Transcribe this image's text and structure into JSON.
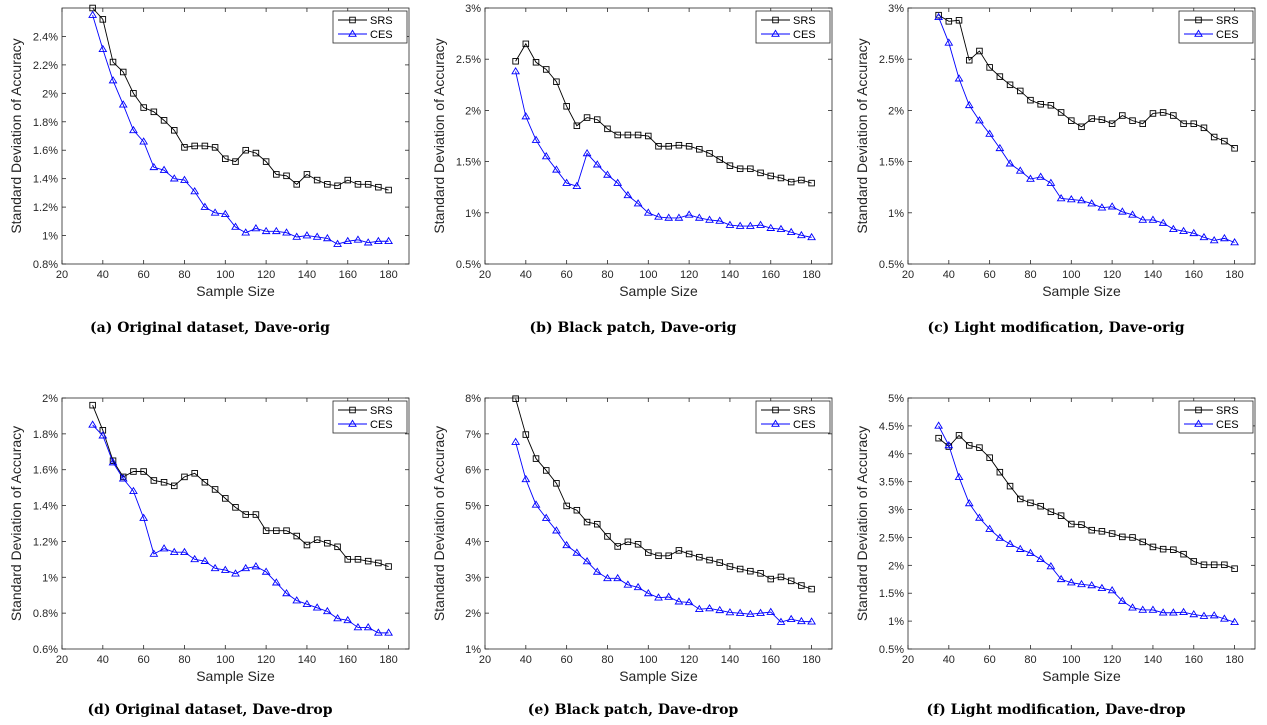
{
  "legend": {
    "srs": "SRS",
    "ces": "CES"
  },
  "colors": {
    "srs": "#000000",
    "ces": "#0000ff"
  },
  "chart_data": [
    {
      "type": "line",
      "caption": "(a) Original dataset, Dave-orig",
      "xlabel": "Sample Size",
      "ylabel": "Standard Deviation of Accuracy",
      "xlim": [
        20,
        190
      ],
      "ylim": [
        0.8,
        2.6
      ],
      "xticks": [
        20,
        40,
        60,
        80,
        100,
        120,
        140,
        160,
        180
      ],
      "yticks": [
        0.8,
        1.0,
        1.2,
        1.4,
        1.6,
        1.8,
        2.0,
        2.2,
        2.4
      ],
      "ytick_labels": [
        "0.8%",
        "1%",
        "1.2%",
        "1.4%",
        "1.6%",
        "1.8%",
        "2%",
        "2.2%",
        "2.4%"
      ],
      "legend_position": "top-right",
      "x": [
        35,
        40,
        45,
        50,
        55,
        60,
        65,
        70,
        75,
        80,
        85,
        90,
        95,
        100,
        105,
        110,
        115,
        120,
        125,
        130,
        135,
        140,
        145,
        150,
        155,
        160,
        165,
        170,
        175,
        180
      ],
      "series": [
        {
          "name": "SRS",
          "values": [
            2.6,
            2.52,
            2.22,
            2.15,
            2.0,
            1.9,
            1.87,
            1.81,
            1.74,
            1.62,
            1.63,
            1.63,
            1.62,
            1.54,
            1.52,
            1.6,
            1.58,
            1.52,
            1.43,
            1.42,
            1.36,
            1.43,
            1.39,
            1.36,
            1.35,
            1.39,
            1.36,
            1.36,
            1.34,
            1.32
          ]
        },
        {
          "name": "CES",
          "values": [
            2.55,
            2.31,
            2.09,
            1.92,
            1.74,
            1.66,
            1.48,
            1.46,
            1.4,
            1.39,
            1.31,
            1.2,
            1.16,
            1.15,
            1.06,
            1.02,
            1.05,
            1.03,
            1.03,
            1.02,
            0.99,
            1.0,
            0.99,
            0.98,
            0.94,
            0.96,
            0.97,
            0.95,
            0.96,
            0.96
          ]
        }
      ]
    },
    {
      "type": "line",
      "caption": "(b) Black patch, Dave-orig",
      "xlabel": "Sample Size",
      "ylabel": "Standard Deviation of Accuracy",
      "xlim": [
        20,
        190
      ],
      "ylim": [
        0.5,
        3.0
      ],
      "xticks": [
        20,
        40,
        60,
        80,
        100,
        120,
        140,
        160,
        180
      ],
      "yticks": [
        0.5,
        1.0,
        1.5,
        2.0,
        2.5,
        3.0
      ],
      "ytick_labels": [
        "0.5%",
        "1%",
        "1.5%",
        "2%",
        "2.5%",
        "3%"
      ],
      "legend_position": "top-right",
      "x": [
        35,
        40,
        45,
        50,
        55,
        60,
        65,
        70,
        75,
        80,
        85,
        90,
        95,
        100,
        105,
        110,
        115,
        120,
        125,
        130,
        135,
        140,
        145,
        150,
        155,
        160,
        165,
        170,
        175,
        180
      ],
      "series": [
        {
          "name": "SRS",
          "values": [
            2.48,
            2.65,
            2.47,
            2.4,
            2.28,
            2.04,
            1.85,
            1.93,
            1.91,
            1.82,
            1.76,
            1.76,
            1.76,
            1.75,
            1.65,
            1.65,
            1.66,
            1.65,
            1.62,
            1.58,
            1.52,
            1.46,
            1.43,
            1.43,
            1.39,
            1.36,
            1.34,
            1.3,
            1.32,
            1.29
          ]
        },
        {
          "name": "CES",
          "values": [
            2.38,
            1.94,
            1.71,
            1.55,
            1.42,
            1.29,
            1.26,
            1.58,
            1.47,
            1.37,
            1.29,
            1.17,
            1.09,
            1.0,
            0.96,
            0.95,
            0.95,
            0.98,
            0.95,
            0.93,
            0.92,
            0.88,
            0.87,
            0.87,
            0.88,
            0.85,
            0.84,
            0.81,
            0.78,
            0.76
          ]
        }
      ]
    },
    {
      "type": "line",
      "caption": "(c) Light modification, Dave-orig",
      "xlabel": "Sample Size",
      "ylabel": "Standard Deviation of Accuracy",
      "xlim": [
        20,
        190
      ],
      "ylim": [
        0.5,
        3.0
      ],
      "xticks": [
        20,
        40,
        60,
        80,
        100,
        120,
        140,
        160,
        180
      ],
      "yticks": [
        0.5,
        1.0,
        1.5,
        2.0,
        2.5,
        3.0
      ],
      "ytick_labels": [
        "0.5%",
        "1%",
        "1.5%",
        "2%",
        "2.5%",
        "3%"
      ],
      "legend_position": "top-right",
      "x": [
        35,
        40,
        45,
        50,
        55,
        60,
        65,
        70,
        75,
        80,
        85,
        90,
        95,
        100,
        105,
        110,
        115,
        120,
        125,
        130,
        135,
        140,
        145,
        150,
        155,
        160,
        165,
        170,
        175,
        180
      ],
      "series": [
        {
          "name": "SRS",
          "values": [
            2.93,
            2.87,
            2.88,
            2.49,
            2.58,
            2.42,
            2.33,
            2.25,
            2.19,
            2.1,
            2.06,
            2.05,
            1.98,
            1.9,
            1.84,
            1.92,
            1.91,
            1.87,
            1.95,
            1.9,
            1.87,
            1.97,
            1.98,
            1.95,
            1.87,
            1.87,
            1.83,
            1.74,
            1.7,
            1.63
          ]
        },
        {
          "name": "CES",
          "values": [
            2.91,
            2.66,
            2.31,
            2.05,
            1.9,
            1.77,
            1.63,
            1.48,
            1.41,
            1.33,
            1.35,
            1.29,
            1.14,
            1.13,
            1.12,
            1.09,
            1.05,
            1.06,
            1.01,
            0.98,
            0.93,
            0.93,
            0.9,
            0.84,
            0.82,
            0.8,
            0.76,
            0.73,
            0.75,
            0.71
          ]
        }
      ]
    },
    {
      "type": "line",
      "caption": "(d) Original dataset, Dave-drop",
      "xlabel": "Sample Size",
      "ylabel": "Standard Deviation of Accuracy",
      "xlim": [
        20,
        190
      ],
      "ylim": [
        0.6,
        2.0
      ],
      "xticks": [
        20,
        40,
        60,
        80,
        100,
        120,
        140,
        160,
        180
      ],
      "yticks": [
        0.6,
        0.8,
        1.0,
        1.2,
        1.4,
        1.6,
        1.8,
        2.0
      ],
      "ytick_labels": [
        "0.6%",
        "0.8%",
        "1%",
        "1.2%",
        "1.4%",
        "1.6%",
        "1.8%",
        "2%"
      ],
      "legend_position": "top-right",
      "x": [
        35,
        40,
        45,
        50,
        55,
        60,
        65,
        70,
        75,
        80,
        85,
        90,
        95,
        100,
        105,
        110,
        115,
        120,
        125,
        130,
        135,
        140,
        145,
        150,
        155,
        160,
        165,
        170,
        175,
        180
      ],
      "series": [
        {
          "name": "SRS",
          "values": [
            1.96,
            1.82,
            1.65,
            1.56,
            1.59,
            1.59,
            1.54,
            1.53,
            1.51,
            1.56,
            1.58,
            1.53,
            1.49,
            1.44,
            1.39,
            1.35,
            1.35,
            1.26,
            1.26,
            1.26,
            1.23,
            1.18,
            1.21,
            1.19,
            1.17,
            1.1,
            1.1,
            1.09,
            1.08,
            1.06
          ]
        },
        {
          "name": "CES",
          "values": [
            1.85,
            1.79,
            1.64,
            1.55,
            1.48,
            1.33,
            1.13,
            1.16,
            1.14,
            1.14,
            1.1,
            1.09,
            1.05,
            1.04,
            1.02,
            1.05,
            1.06,
            1.03,
            0.97,
            0.91,
            0.87,
            0.85,
            0.83,
            0.81,
            0.77,
            0.76,
            0.72,
            0.72,
            0.69,
            0.69
          ]
        }
      ]
    },
    {
      "type": "line",
      "caption": "(e) Black patch, Dave-drop",
      "xlabel": "Sample Size",
      "ylabel": "Standard Deviation of Accuracy",
      "xlim": [
        20,
        190
      ],
      "ylim": [
        1,
        8
      ],
      "xticks": [
        20,
        40,
        60,
        80,
        100,
        120,
        140,
        160,
        180
      ],
      "yticks": [
        1,
        2,
        3,
        4,
        5,
        6,
        7,
        8
      ],
      "ytick_labels": [
        "1%",
        "2%",
        "3%",
        "4%",
        "5%",
        "6%",
        "7%",
        "8%"
      ],
      "legend_position": "top-right",
      "x": [
        35,
        40,
        45,
        50,
        55,
        60,
        65,
        70,
        75,
        80,
        85,
        90,
        95,
        100,
        105,
        110,
        115,
        120,
        125,
        130,
        135,
        140,
        145,
        150,
        155,
        160,
        165,
        170,
        175,
        180
      ],
      "series": [
        {
          "name": "SRS",
          "values": [
            7.98,
            6.98,
            6.31,
            5.98,
            5.62,
            4.99,
            4.87,
            4.54,
            4.48,
            4.14,
            3.86,
            3.99,
            3.92,
            3.69,
            3.6,
            3.6,
            3.75,
            3.65,
            3.56,
            3.48,
            3.41,
            3.3,
            3.23,
            3.17,
            3.11,
            2.95,
            3.01,
            2.9,
            2.77,
            2.67
          ]
        },
        {
          "name": "CES",
          "values": [
            6.77,
            5.73,
            5.02,
            4.65,
            4.3,
            3.89,
            3.68,
            3.44,
            3.15,
            2.97,
            2.97,
            2.79,
            2.72,
            2.55,
            2.43,
            2.45,
            2.32,
            2.3,
            2.11,
            2.13,
            2.08,
            2.02,
            2.0,
            1.97,
            2.0,
            2.03,
            1.75,
            1.83,
            1.77,
            1.76
          ]
        }
      ]
    },
    {
      "type": "line",
      "caption": "(f) Light modification, Dave-drop",
      "xlabel": "Sample Size",
      "ylabel": "Standard Deviation of Accuracy",
      "xlim": [
        20,
        190
      ],
      "ylim": [
        0.5,
        5.0
      ],
      "xticks": [
        20,
        40,
        60,
        80,
        100,
        120,
        140,
        160,
        180
      ],
      "yticks": [
        0.5,
        1.0,
        1.5,
        2.0,
        2.5,
        3.0,
        3.5,
        4.0,
        4.5,
        5.0
      ],
      "ytick_labels": [
        "0.5%",
        "1%",
        "1.5%",
        "2%",
        "2.5%",
        "3%",
        "3.5%",
        "4%",
        "4.5%",
        "5%"
      ],
      "legend_position": "top-right",
      "x": [
        35,
        40,
        45,
        50,
        55,
        60,
        65,
        70,
        75,
        80,
        85,
        90,
        95,
        100,
        105,
        110,
        115,
        120,
        125,
        130,
        135,
        140,
        145,
        150,
        155,
        160,
        165,
        170,
        175,
        180
      ],
      "series": [
        {
          "name": "SRS",
          "values": [
            4.28,
            4.13,
            4.33,
            4.15,
            4.11,
            3.93,
            3.67,
            3.42,
            3.19,
            3.12,
            3.06,
            2.96,
            2.89,
            2.74,
            2.73,
            2.63,
            2.61,
            2.57,
            2.51,
            2.5,
            2.42,
            2.33,
            2.29,
            2.28,
            2.2,
            2.07,
            2.01,
            2.01,
            2.01,
            1.94
          ]
        },
        {
          "name": "CES",
          "values": [
            4.5,
            4.15,
            3.58,
            3.11,
            2.85,
            2.65,
            2.49,
            2.38,
            2.29,
            2.22,
            2.11,
            1.98,
            1.75,
            1.69,
            1.66,
            1.64,
            1.59,
            1.55,
            1.36,
            1.24,
            1.2,
            1.2,
            1.15,
            1.15,
            1.16,
            1.12,
            1.09,
            1.1,
            1.04,
            0.98
          ]
        }
      ]
    }
  ]
}
